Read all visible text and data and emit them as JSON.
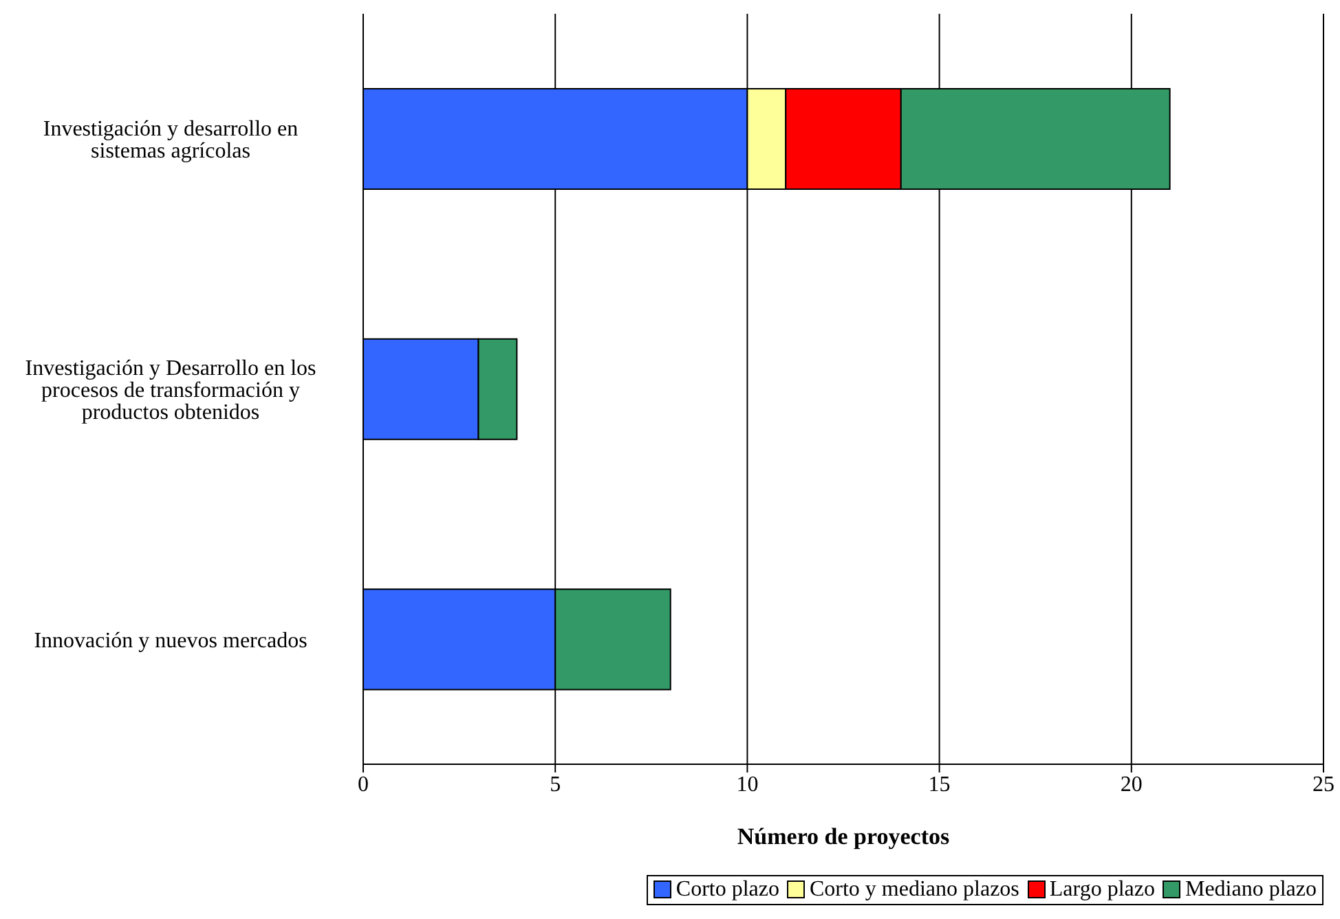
{
  "chart_data": {
    "type": "bar",
    "orientation": "horizontal",
    "stacked": true,
    "xlabel": "Número de proyectos",
    "categories": [
      "Investigación y desarrollo en sistemas agrícolas",
      "Investigación y Desarrollo en los procesos de transformación y productos obtenidos",
      "Innovación y nuevos mercados"
    ],
    "series": [
      {
        "name": "Corto plazo",
        "color": "#3366ff",
        "values": [
          10,
          3,
          5
        ]
      },
      {
        "name": "Corto y mediano plazos",
        "color": "#ffff99",
        "values": [
          1,
          0,
          0
        ]
      },
      {
        "name": "Largo plazo",
        "color": "#ff0000",
        "values": [
          3,
          0,
          0
        ]
      },
      {
        "name": "Mediano plazo",
        "color": "#339966",
        "values": [
          7,
          1,
          3
        ]
      }
    ],
    "xlim": [
      0,
      25
    ],
    "xticks": [
      0,
      5,
      10,
      15,
      20,
      25
    ],
    "grid": "x",
    "legend": "bottom"
  }
}
